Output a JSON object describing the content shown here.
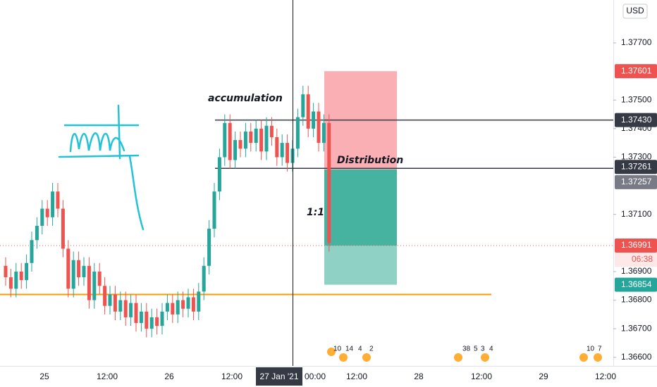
{
  "chart_data": {
    "type": "candlestick",
    "currency": "USD",
    "ylim": [
      1.3657,
      1.3785
    ],
    "yticks": [
      {
        "value": 1.377,
        "label": "1.37700"
      },
      {
        "value": 1.375,
        "label": "1.37500"
      },
      {
        "value": 1.374,
        "label": "1.37400"
      },
      {
        "value": 1.373,
        "label": "1.37300"
      },
      {
        "value": 1.371,
        "label": "1.37100"
      },
      {
        "value": 1.369,
        "label": "1.36900"
      },
      {
        "value": 1.368,
        "label": "1.36800"
      },
      {
        "value": 1.367,
        "label": "1.36700"
      },
      {
        "value": 1.366,
        "label": "1.36600"
      }
    ],
    "x_labels": [
      "25",
      "12:00",
      "26",
      "12:00",
      "27 Jan '21",
      "00:00",
      "12:00",
      "28",
      "12:00",
      "29",
      "12:00"
    ],
    "up_color": "#26a69a",
    "down_color": "#ef5350",
    "open": [
      1.3692,
      1.3688,
      1.3684,
      1.369,
      1.3687,
      1.3693,
      1.3701,
      1.3706,
      1.3712,
      1.3709,
      1.3718,
      1.3712,
      1.3698,
      1.3684,
      1.3694,
      1.3688,
      1.3692,
      1.368,
      1.369,
      1.3685,
      1.3678,
      1.3682,
      1.3676,
      1.368,
      1.3674,
      1.3679,
      1.3672,
      1.3676,
      1.367,
      1.3674,
      1.3671,
      1.3676,
      1.3679,
      1.3675,
      1.368,
      1.3677,
      1.3681,
      1.3676,
      1.3683,
      1.3692,
      1.3705,
      1.3718,
      1.373,
      1.3742,
      1.3729,
      1.3736,
      1.3733,
      1.3739,
      1.3735,
      1.374,
      1.3732,
      1.3741,
      1.3737,
      1.373,
      1.3735,
      1.3728,
      1.3733,
      1.3744,
      1.3752,
      1.374,
      1.3746,
      1.3735,
      1.3742
    ],
    "high": [
      1.3695,
      1.3691,
      1.3693,
      1.3693,
      1.3696,
      1.3704,
      1.3709,
      1.3715,
      1.3715,
      1.3721,
      1.3721,
      1.3715,
      1.3701,
      1.3697,
      1.3697,
      1.3695,
      1.3695,
      1.3693,
      1.3693,
      1.3688,
      1.3685,
      1.3685,
      1.3683,
      1.3683,
      1.3682,
      1.3682,
      1.3679,
      1.3679,
      1.3677,
      1.3677,
      1.3679,
      1.3682,
      1.3682,
      1.3683,
      1.3683,
      1.3684,
      1.3684,
      1.3686,
      1.3695,
      1.3708,
      1.3721,
      1.3733,
      1.3745,
      1.3745,
      1.3739,
      1.3739,
      1.3742,
      1.3742,
      1.3743,
      1.3743,
      1.3744,
      1.3744,
      1.374,
      1.3738,
      1.3738,
      1.3736,
      1.3747,
      1.3755,
      1.3755,
      1.3749,
      1.3749,
      1.3745,
      1.3745
    ],
    "low": [
      1.3685,
      1.3681,
      1.3681,
      1.3684,
      1.3684,
      1.369,
      1.3698,
      1.3703,
      1.3706,
      1.3706,
      1.3709,
      1.3695,
      1.3681,
      1.3681,
      1.3685,
      1.3685,
      1.3677,
      1.3677,
      1.3682,
      1.3675,
      1.3675,
      1.3673,
      1.3673,
      1.3671,
      1.3671,
      1.3669,
      1.3669,
      1.3667,
      1.3667,
      1.3668,
      1.3668,
      1.3673,
      1.3672,
      1.3672,
      1.3674,
      1.3674,
      1.3673,
      1.3673,
      1.368,
      1.3689,
      1.3702,
      1.3715,
      1.3727,
      1.3726,
      1.3726,
      1.373,
      1.373,
      1.3732,
      1.3732,
      1.3729,
      1.3729,
      1.3734,
      1.3727,
      1.3727,
      1.3725,
      1.3725,
      1.373,
      1.3741,
      1.3737,
      1.3737,
      1.3732,
      1.3732,
      1.3697
    ],
    "close": [
      1.3688,
      1.3684,
      1.369,
      1.3687,
      1.3693,
      1.3701,
      1.3706,
      1.3712,
      1.3709,
      1.3718,
      1.3712,
      1.3698,
      1.3684,
      1.3694,
      1.3688,
      1.3692,
      1.368,
      1.369,
      1.3685,
      1.3678,
      1.3682,
      1.3676,
      1.368,
      1.3674,
      1.3679,
      1.3672,
      1.3676,
      1.367,
      1.3674,
      1.3671,
      1.3676,
      1.3679,
      1.3675,
      1.368,
      1.3677,
      1.3681,
      1.3676,
      1.3683,
      1.3692,
      1.3705,
      1.3718,
      1.373,
      1.3742,
      1.3729,
      1.3736,
      1.3733,
      1.3739,
      1.3735,
      1.374,
      1.3732,
      1.3741,
      1.3737,
      1.373,
      1.3735,
      1.3728,
      1.3733,
      1.3744,
      1.3752,
      1.374,
      1.3746,
      1.3735,
      1.3742,
      1.37
    ],
    "levels": [
      {
        "value": 1.3743,
        "label": "1.37430",
        "color": "#363a45"
      },
      {
        "value": 1.37261,
        "color": "#363a45"
      }
    ],
    "support": {
      "value": 1.3682,
      "color": "#ff9800"
    },
    "position": {
      "stop": 1.37601,
      "entry": 1.37257,
      "target": 1.36854
    },
    "current_price": 1.36991,
    "countdown": "06:38",
    "annotations": [
      "accumulation",
      "Distribution",
      "1:1"
    ],
    "events": [
      "10",
      "14",
      "4",
      "2",
      "38",
      "5",
      "3",
      "4",
      "10",
      "7"
    ]
  }
}
